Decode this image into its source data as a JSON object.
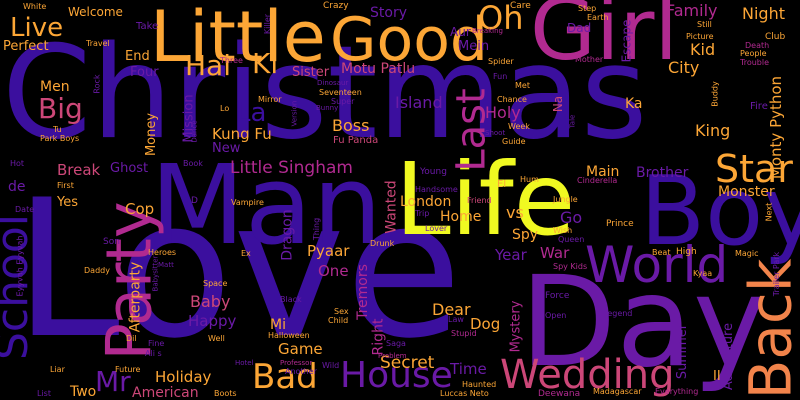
{
  "background": "#000000",
  "palette": {
    "indigo": "#3b0f9e",
    "violet": "#6a1aa6",
    "magenta": "#b12a90",
    "rose": "#cc4778",
    "coral": "#e16462",
    "orange": "#f2844b",
    "amber": "#fca636",
    "yellow": "#f0f921"
  },
  "words": [
    {
      "text": "Love",
      "color": "#3b0f9e"
    },
    {
      "text": "Christmas",
      "color": "#3b0f9e"
    },
    {
      "text": "Man",
      "color": "#3b0f9e"
    },
    {
      "text": "Life",
      "color": "#f0f921"
    },
    {
      "text": "Day",
      "color": "#6a1aa6"
    },
    {
      "text": "Girl",
      "color": "#b12a90"
    },
    {
      "text": "Boy",
      "color": "#3b0f9e"
    },
    {
      "text": "Little",
      "color": "#fca636"
    },
    {
      "text": "Good",
      "color": "#fca636"
    },
    {
      "text": "Party",
      "color": "#b12a90"
    },
    {
      "text": "School",
      "color": "#3b0f9e"
    },
    {
      "text": "Back",
      "color": "#f2844b"
    },
    {
      "text": "World",
      "color": "#6a1aa6"
    },
    {
      "text": "Wedding",
      "color": "#cc4778"
    },
    {
      "text": "Bad",
      "color": "#fca636"
    },
    {
      "text": "House",
      "color": "#6a1aa6"
    },
    {
      "text": "Last",
      "color": "#b12a90"
    },
    {
      "text": "Star",
      "color": "#fca636"
    },
    {
      "text": "Oh",
      "color": "#fca636"
    },
    {
      "text": "Hai",
      "color": "#fca636"
    },
    {
      "text": "Ki",
      "color": "#fca636"
    },
    {
      "text": "Live",
      "color": "#fca636"
    },
    {
      "text": "Big",
      "color": "#cc4778"
    },
    {
      "text": "Mr",
      "color": "#6a1aa6"
    },
    {
      "text": "La",
      "color": "#3b0f9e"
    },
    {
      "text": "Night",
      "color": "#fca636"
    },
    {
      "text": "Family",
      "color": "#b12a90"
    },
    {
      "text": "Kid",
      "color": "#fca636"
    },
    {
      "text": "City",
      "color": "#fca636"
    },
    {
      "text": "Monty Python",
      "color": "#fca636"
    },
    {
      "text": "King",
      "color": "#fca636"
    },
    {
      "text": "Little Singham",
      "color": "#b12a90"
    },
    {
      "text": "Boss",
      "color": "#fca636"
    },
    {
      "text": "Island",
      "color": "#6a1aa6"
    },
    {
      "text": "Holy",
      "color": "#b12a90"
    },
    {
      "text": "Ka",
      "color": "#fca636"
    },
    {
      "text": "Kung Fu",
      "color": "#fca636"
    },
    {
      "text": "Money",
      "color": "#fca636"
    },
    {
      "text": "Mission",
      "color": "#6a1aa6"
    },
    {
      "text": "Ghost",
      "color": "#6a1aa6"
    },
    {
      "text": "Break",
      "color": "#cc4778"
    },
    {
      "text": "Brother",
      "color": "#6a1aa6"
    },
    {
      "text": "Main",
      "color": "#fca636"
    },
    {
      "text": "Monster",
      "color": "#fca636"
    },
    {
      "text": "London",
      "color": "#fca636"
    },
    {
      "text": "Home",
      "color": "#fca636"
    },
    {
      "text": "Wanted",
      "color": "#cc4778"
    },
    {
      "text": "vs",
      "color": "#fca636"
    },
    {
      "text": "Spy",
      "color": "#fca636"
    },
    {
      "text": "Go",
      "color": "#6a1aa6"
    },
    {
      "text": "Cop",
      "color": "#fca636"
    },
    {
      "text": "Dragon",
      "color": "#6a1aa6"
    },
    {
      "text": "Pyaar",
      "color": "#fca636"
    },
    {
      "text": "One",
      "color": "#b12a90"
    },
    {
      "text": "Tremors",
      "color": "#b12a90"
    },
    {
      "text": "Year",
      "color": "#6a1aa6"
    },
    {
      "text": "War",
      "color": "#b12a90"
    },
    {
      "text": "Baby",
      "color": "#cc4778"
    },
    {
      "text": "Happy",
      "color": "#6a1aa6"
    },
    {
      "text": "Afterparty",
      "color": "#fca636"
    },
    {
      "text": "Dear",
      "color": "#fca636"
    },
    {
      "text": "Dog",
      "color": "#fca636"
    },
    {
      "text": "Mystery",
      "color": "#b12a90"
    },
    {
      "text": "Right",
      "color": "#b12a90"
    },
    {
      "text": "Secret",
      "color": "#fca636"
    },
    {
      "text": "Time",
      "color": "#6a1aa6"
    },
    {
      "text": "Summer",
      "color": "#6a1aa6"
    },
    {
      "text": "Adventure",
      "color": "#6a1aa6"
    },
    {
      "text": "Game",
      "color": "#fca636"
    },
    {
      "text": "Holiday",
      "color": "#fca636"
    },
    {
      "text": "American",
      "color": "#cc4778"
    },
    {
      "text": "Two",
      "color": "#fca636"
    },
    {
      "text": "Mi",
      "color": "#fca636"
    },
    {
      "text": "Welcome",
      "color": "#fca636"
    },
    {
      "text": "Perfect",
      "color": "#fca636"
    },
    {
      "text": "Men",
      "color": "#fca636"
    },
    {
      "text": "Story",
      "color": "#6a1aa6"
    },
    {
      "text": "Mein",
      "color": "#6a1aa6"
    },
    {
      "text": "Sister",
      "color": "#cc4778"
    },
    {
      "text": "Motu Patlu",
      "color": "#cc4778"
    },
    {
      "text": "Dad",
      "color": "#6a1aa6"
    },
    {
      "text": "Escape",
      "color": "#6a1aa6"
    },
    {
      "text": "End",
      "color": "#fca636"
    },
    {
      "text": "Four",
      "color": "#6a1aa6"
    },
    {
      "text": "New",
      "color": "#6a1aa6"
    },
    {
      "text": "de",
      "color": "#6a1aa6"
    },
    {
      "text": "Yes",
      "color": "#fca636"
    },
    {
      "text": "Fu Panda",
      "color": "#cc4778"
    },
    {
      "text": "Na",
      "color": "#cc4778"
    },
    {
      "text": "Aur",
      "color": "#6a1aa6"
    },
    {
      "text": "II",
      "color": "#fca636"
    },
    {
      "text": "Crazy",
      "color": "#fca636"
    },
    {
      "text": "Care",
      "color": "#fca636"
    },
    {
      "text": "Take",
      "color": "#6a1aa6"
    },
    {
      "text": "Travel",
      "color": "#fca636"
    },
    {
      "text": "Club",
      "color": "#fca636"
    },
    {
      "text": "Death",
      "color": "#b12a90"
    },
    {
      "text": "People",
      "color": "#fca636"
    },
    {
      "text": "Trouble",
      "color": "#b12a90"
    },
    {
      "text": "Fire",
      "color": "#6a1aa6"
    },
    {
      "text": "Mirror",
      "color": "#fca636"
    },
    {
      "text": "Seventeen",
      "color": "#fca636"
    },
    {
      "text": "Super",
      "color": "#6a1aa6"
    },
    {
      "text": "Chance",
      "color": "#fca636"
    },
    {
      "text": "Week",
      "color": "#fca636"
    },
    {
      "text": "Guide",
      "color": "#fca636"
    },
    {
      "text": "Young",
      "color": "#6a1aa6"
    },
    {
      "text": "Handsome",
      "color": "#6a1aa6"
    },
    {
      "text": "Friend",
      "color": "#cc4778"
    },
    {
      "text": "Trip",
      "color": "#6a1aa6"
    },
    {
      "text": "Lover",
      "color": "#6a1aa6"
    },
    {
      "text": "Jungle",
      "color": "#fca636"
    },
    {
      "text": "Cinderella",
      "color": "#b12a90"
    },
    {
      "text": "Wish",
      "color": "#fca636"
    },
    {
      "text": "Queen",
      "color": "#6a1aa6"
    },
    {
      "text": "Prince",
      "color": "#fca636"
    },
    {
      "text": "Beat",
      "color": "#fca636"
    },
    {
      "text": "High",
      "color": "#fca636"
    },
    {
      "text": "Magic",
      "color": "#fca636"
    },
    {
      "text": "Kyaa",
      "color": "#fca636"
    },
    {
      "text": "Spy Kids",
      "color": "#b12a90"
    },
    {
      "text": "Force",
      "color": "#6a1aa6"
    },
    {
      "text": "Open",
      "color": "#6a1aa6"
    },
    {
      "text": "Legend",
      "color": "#6a1aa6"
    },
    {
      "text": "Vampire",
      "color": "#fca636"
    },
    {
      "text": "Ex",
      "color": "#fca636"
    },
    {
      "text": "Space",
      "color": "#fca636"
    },
    {
      "text": "Black",
      "color": "#6a1aa6"
    },
    {
      "text": "Sex",
      "color": "#fca636"
    },
    {
      "text": "Child",
      "color": "#fca636"
    },
    {
      "text": "Thing",
      "color": "#6a1aa6"
    },
    {
      "text": "Drunk",
      "color": "#fca636"
    },
    {
      "text": "Heroes",
      "color": "#fca636"
    },
    {
      "text": "Son",
      "color": "#6a1aa6"
    },
    {
      "text": "Daddy",
      "color": "#fca636"
    },
    {
      "text": "Date",
      "color": "#6a1aa6"
    },
    {
      "text": "First",
      "color": "#fca636"
    },
    {
      "text": "Hot",
      "color": "#6a1aa6"
    },
    {
      "text": "Tu",
      "color": "#fca636"
    },
    {
      "text": "Park Boys",
      "color": "#fca636"
    },
    {
      "text": "Lo",
      "color": "#fca636"
    },
    {
      "text": "Book",
      "color": "#6a1aa6"
    },
    {
      "text": "Saga",
      "color": "#6a1aa6"
    },
    {
      "text": "Law",
      "color": "#6a1aa6"
    },
    {
      "text": "Stupid",
      "color": "#b12a90"
    },
    {
      "text": "Problem",
      "color": "#b12a90"
    },
    {
      "text": "Halloween",
      "color": "#fca636"
    },
    {
      "text": "Well",
      "color": "#fca636"
    },
    {
      "text": "Fine",
      "color": "#6a1aa6"
    },
    {
      "text": "Ali s",
      "color": "#6a1aa6"
    },
    {
      "text": "Dil",
      "color": "#fca636"
    },
    {
      "text": "Liar",
      "color": "#fca636"
    },
    {
      "text": "Future",
      "color": "#fca636"
    },
    {
      "text": "Boots",
      "color": "#fca636"
    },
    {
      "text": "List",
      "color": "#6a1aa6"
    },
    {
      "text": "Another",
      "color": "#6a1aa6"
    },
    {
      "text": "Haunted",
      "color": "#fca636"
    },
    {
      "text": "Luccas Neto",
      "color": "#fca636"
    },
    {
      "text": "Deewana",
      "color": "#b12a90"
    },
    {
      "text": "Madagascar",
      "color": "#fca636"
    },
    {
      "text": "Everything",
      "color": "#b12a90"
    },
    {
      "text": "Trailer Park",
      "color": "#6a1aa6"
    },
    {
      "text": "Fun",
      "color": "#6a1aa6"
    },
    {
      "text": "Met",
      "color": "#fca636"
    },
    {
      "text": "Step",
      "color": "#fca636"
    },
    {
      "text": "Earth",
      "color": "#fca636"
    },
    {
      "text": "Still",
      "color": "#fca636"
    },
    {
      "text": "Picture",
      "color": "#fca636"
    },
    {
      "text": "Mother",
      "color": "#b12a90"
    },
    {
      "text": "Spider",
      "color": "#fca636"
    },
    {
      "text": "White",
      "color": "#fca636"
    },
    {
      "text": "Three",
      "color": "#b12a90"
    },
    {
      "text": "Killer",
      "color": "#6a1aa6"
    },
    {
      "text": "El",
      "color": "#fca636"
    },
    {
      "text": "Hum",
      "color": "#fca636"
    },
    {
      "text": "Rock",
      "color": "#6a1aa6"
    },
    {
      "text": "Eyyvah Eyyvah",
      "color": "#6a1aa6"
    },
    {
      "text": "Hotel",
      "color": "#6a1aa6"
    },
    {
      "text": "Professor",
      "color": "#b12a90"
    },
    {
      "text": "Wild",
      "color": "#6a1aa6"
    },
    {
      "text": "Bunny",
      "color": "#6a1aa6"
    },
    {
      "text": "Buddy",
      "color": "#fca636"
    },
    {
      "text": "Version",
      "color": "#6a1aa6"
    },
    {
      "text": "Dance",
      "color": "#6a1aa6"
    },
    {
      "text": "Babysitter",
      "color": "#6a1aa6"
    },
    {
      "text": "Matt",
      "color": "#6a1aa6"
    },
    {
      "text": "Breaking",
      "color": "#b12a90"
    },
    {
      "text": "Dinosaur",
      "color": "#6a1aa6"
    },
    {
      "text": "Shoot",
      "color": "#6a1aa6"
    },
    {
      "text": "Tale",
      "color": "#6a1aa6"
    },
    {
      "text": "Next",
      "color": "#fca636"
    },
    {
      "text": "D",
      "color": "#6a1aa6"
    }
  ]
}
